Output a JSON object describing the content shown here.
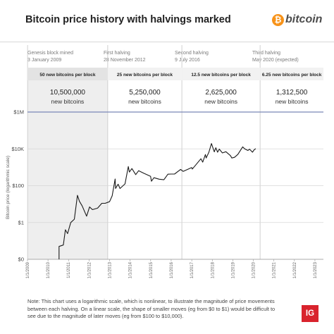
{
  "page": {
    "title": "Bitcoin price history with halvings marked",
    "brand": {
      "glyph": "₿",
      "word": "bitcoin",
      "color": "#f7931a"
    },
    "note": "Note: This chart uses a logarithmic scale, which is nonlinear, to illustrate the magnitude of price movements between each halving. On a linear scale, the shape of smaller moves (eg from $0 to $1) would be difficult to see due to the magnitude of later moves (eg from $100 to $10,000).",
    "logo": "IG"
  },
  "eras": [
    {
      "label": "Genesis block mined",
      "date": "3 January 2009",
      "reward": "50 new bitcoins per block",
      "amount": "10,500,000",
      "unit": "new bitcoins"
    },
    {
      "label": "First halving",
      "date": "28 November 2012",
      "reward": "25 new bitcoins per block",
      "amount": "5,250,000",
      "unit": "new bitcoins"
    },
    {
      "label": "Second halving",
      "date": "9 July 2016",
      "reward": "12.5 new bitcoins per block",
      "amount": "2,625,000",
      "unit": "new bitcoins"
    },
    {
      "label": "Third halving",
      "date": "May 2020 (expected)",
      "reward": "6.25 new bitcoins per block",
      "amount": "1,312,500",
      "unit": "new bitcoins"
    }
  ],
  "chart_data": {
    "type": "line",
    "ylabel": "Bitcoin price (logarithmic scale)",
    "log_scale": true,
    "ylim": [
      0.01,
      1000000
    ],
    "xlim": [
      "2009-01-01",
      "2023-06-01"
    ],
    "yticks": [
      {
        "value": 0.01,
        "label": "$0"
      },
      {
        "value": 1,
        "label": "$1"
      },
      {
        "value": 100,
        "label": "$100"
      },
      {
        "value": 10000,
        "label": "$10K"
      },
      {
        "value": 1000000,
        "label": "$1M"
      }
    ],
    "xticks": [
      "1/1/2009",
      "1/1/2010",
      "1/1/2011",
      "1/1/2012",
      "1/1/2013",
      "1/1/2014",
      "1/1/2015",
      "1/1/2016",
      "1/1/2017",
      "1/1/2018",
      "1/1/2019",
      "1/1/2020",
      "1/1/2021",
      "1/1/2022",
      "1/1/2023"
    ],
    "halving_dates": [
      "2009-01-03",
      "2012-11-28",
      "2016-07-09",
      "2020-05-01"
    ],
    "line_color": "#1a1a1a",
    "series": [
      {
        "points": [
          [
            "2010-07-17",
            0.05
          ],
          [
            "2010-10-01",
            0.06
          ],
          [
            "2010-11-06",
            0.4
          ],
          [
            "2010-12-15",
            0.25
          ],
          [
            "2011-02-10",
            1.0
          ],
          [
            "2011-04-15",
            1.5
          ],
          [
            "2011-06-08",
            30
          ],
          [
            "2011-07-15",
            14
          ],
          [
            "2011-09-01",
            8
          ],
          [
            "2011-11-18",
            2.2
          ],
          [
            "2012-01-10",
            7
          ],
          [
            "2012-03-01",
            5
          ],
          [
            "2012-06-01",
            6
          ],
          [
            "2012-08-15",
            11
          ],
          [
            "2012-10-15",
            11
          ],
          [
            "2012-12-31",
            13.5
          ],
          [
            "2013-02-15",
            28
          ],
          [
            "2013-04-09",
            230
          ],
          [
            "2013-04-17",
            70
          ],
          [
            "2013-06-01",
            120
          ],
          [
            "2013-07-05",
            70
          ],
          [
            "2013-10-01",
            125
          ],
          [
            "2013-11-30",
            1100
          ],
          [
            "2013-12-18",
            550
          ],
          [
            "2014-02-01",
            850
          ],
          [
            "2014-04-10",
            400
          ],
          [
            "2014-06-01",
            650
          ],
          [
            "2014-09-01",
            470
          ],
          [
            "2014-12-31",
            320
          ],
          [
            "2015-01-14",
            175
          ],
          [
            "2015-03-01",
            270
          ],
          [
            "2015-06-01",
            225
          ],
          [
            "2015-08-25",
            210
          ],
          [
            "2015-11-04",
            420
          ],
          [
            "2015-12-31",
            430
          ],
          [
            "2016-03-01",
            430
          ],
          [
            "2016-06-16",
            760
          ],
          [
            "2016-08-01",
            600
          ],
          [
            "2016-12-31",
            960
          ],
          [
            "2017-01-10",
            800
          ],
          [
            "2017-03-01",
            1200
          ],
          [
            "2017-06-12",
            2900
          ],
          [
            "2017-07-15",
            1900
          ],
          [
            "2017-09-01",
            4900
          ],
          [
            "2017-09-15",
            3200
          ],
          [
            "2017-11-01",
            6500
          ],
          [
            "2017-12-17",
            19500
          ],
          [
            "2018-02-06",
            6900
          ],
          [
            "2018-03-05",
            11500
          ],
          [
            "2018-04-06",
            6600
          ],
          [
            "2018-05-05",
            9700
          ],
          [
            "2018-06-30",
            6000
          ],
          [
            "2018-09-01",
            7000
          ],
          [
            "2018-11-20",
            4300
          ],
          [
            "2018-12-15",
            3200
          ],
          [
            "2019-02-01",
            3500
          ],
          [
            "2019-04-02",
            5000
          ],
          [
            "2019-06-26",
            12900
          ],
          [
            "2019-08-01",
            10000
          ],
          [
            "2019-09-25",
            8200
          ],
          [
            "2019-10-26",
            9500
          ],
          [
            "2019-12-17",
            6600
          ],
          [
            "2020-01-15",
            8800
          ],
          [
            "2020-02-13",
            10300
          ]
        ]
      }
    ]
  }
}
